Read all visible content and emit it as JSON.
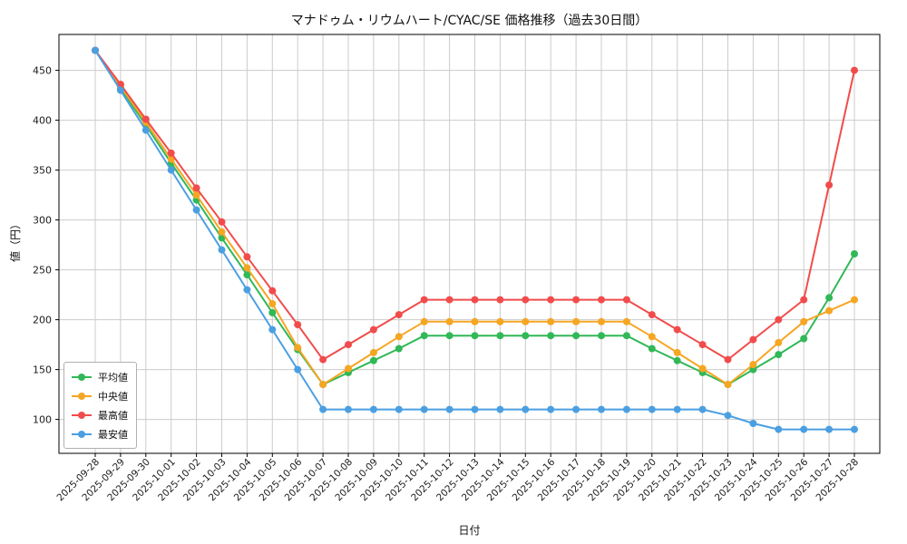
{
  "chart_data": {
    "type": "line",
    "title": "マナドゥム・リウムハート/CYAC/SE 価格推移（過去30日間）",
    "xlabel": "日付",
    "ylabel": "値（円）",
    "ylim": [
      66,
      486
    ],
    "yticks": [
      100,
      150,
      200,
      250,
      300,
      350,
      400,
      450
    ],
    "grid": true,
    "legend_position": "lower left",
    "categories": [
      "2025-09-28",
      "2025-09-29",
      "2025-09-30",
      "2025-10-01",
      "2025-10-02",
      "2025-10-03",
      "2025-10-04",
      "2025-10-05",
      "2025-10-06",
      "2025-10-07",
      "2025-10-08",
      "2025-10-09",
      "2025-10-10",
      "2025-10-11",
      "2025-10-12",
      "2025-10-13",
      "2025-10-14",
      "2025-10-15",
      "2025-10-16",
      "2025-10-17",
      "2025-10-18",
      "2025-10-19",
      "2025-10-20",
      "2025-10-21",
      "2025-10-22",
      "2025-10-23",
      "2025-10-24",
      "2025-10-25",
      "2025-10-26",
      "2025-10-27",
      "2025-10-28"
    ],
    "series": [
      {
        "name": "平均値",
        "color": "#31b857",
        "values": [
          470,
          432,
          395,
          357,
          320,
          282,
          245,
          207,
          170,
          135,
          147,
          159,
          171,
          184,
          184,
          184,
          184,
          184,
          184,
          184,
          184,
          184,
          171,
          159,
          147,
          135,
          150,
          165,
          181,
          222,
          266
        ]
      },
      {
        "name": "中央値",
        "color": "#f5a623",
        "values": [
          470,
          434,
          398,
          361,
          325,
          288,
          252,
          216,
          172,
          135,
          151,
          167,
          183,
          198,
          198,
          198,
          198,
          198,
          198,
          198,
          198,
          198,
          183,
          167,
          151,
          135,
          155,
          177,
          198,
          209,
          220
        ]
      },
      {
        "name": "最高値",
        "color": "#f14c4c",
        "values": [
          470,
          436,
          401,
          367,
          332,
          298,
          263,
          229,
          195,
          160,
          175,
          190,
          205,
          220,
          220,
          220,
          220,
          220,
          220,
          220,
          220,
          220,
          205,
          190,
          175,
          160,
          180,
          200,
          220,
          335,
          450
        ]
      },
      {
        "name": "最安値",
        "color": "#4b9fe1",
        "values": [
          470,
          430,
          390,
          350,
          310,
          270,
          230,
          190,
          150,
          110,
          110,
          110,
          110,
          110,
          110,
          110,
          110,
          110,
          110,
          110,
          110,
          110,
          110,
          110,
          110,
          104,
          96,
          90,
          90,
          90,
          90
        ]
      }
    ]
  }
}
